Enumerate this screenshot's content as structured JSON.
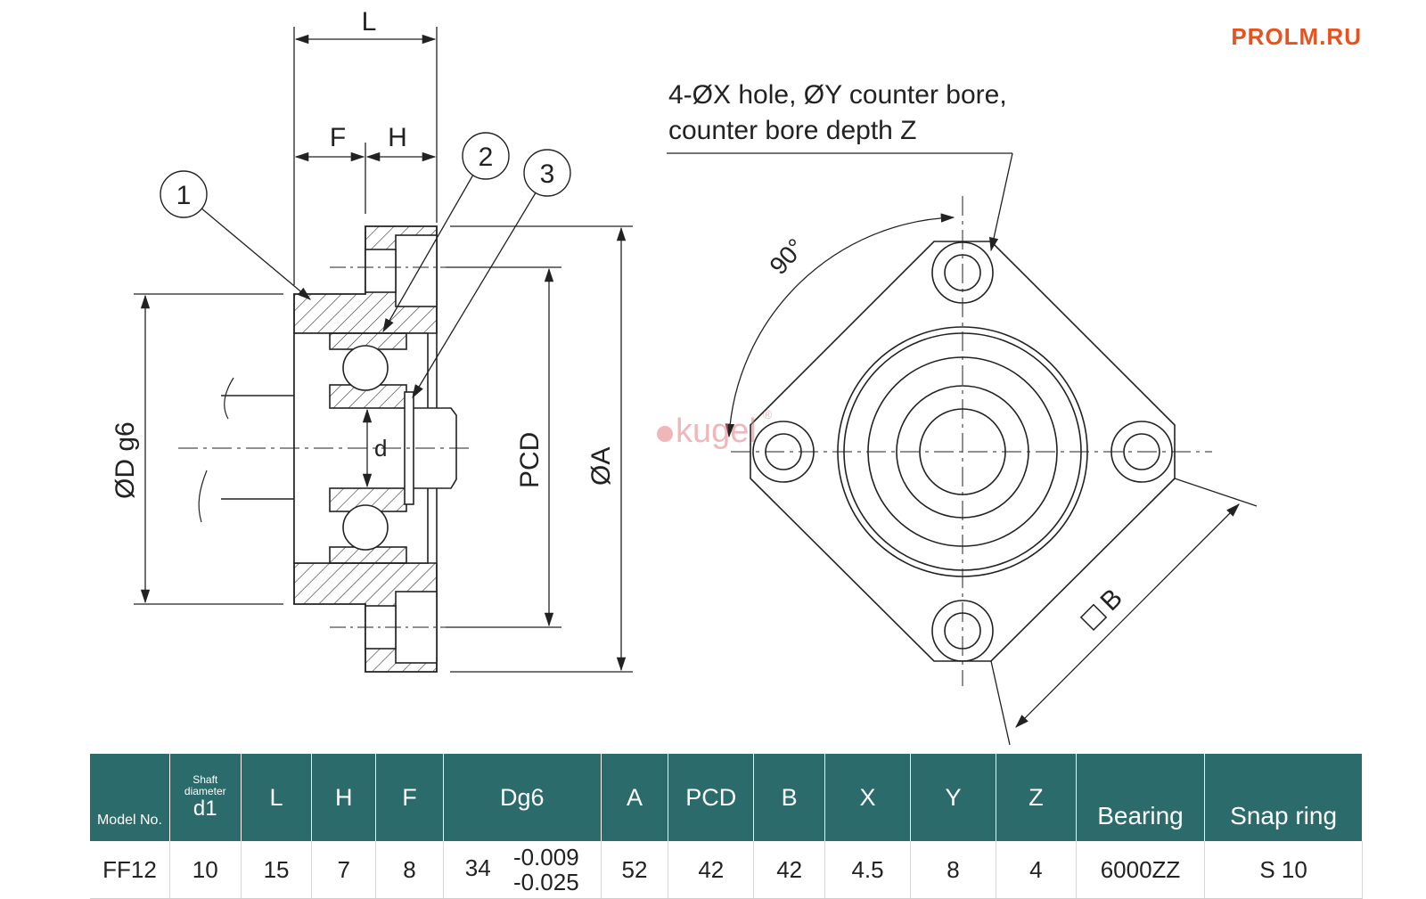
{
  "brand": "PROLM.RU",
  "watermark": "kugel",
  "watermark_mark": "®",
  "callout_note": {
    "line1": "4-ØX hole, ØY counter bore,",
    "line2": "counter bore depth Z"
  },
  "angle_label": "90°",
  "dims": {
    "L": "L",
    "F": "F",
    "H": "H",
    "d": "d",
    "D": "ØD g6",
    "PCD": "PCD",
    "A": "ØA",
    "B": "B"
  },
  "balloons": [
    "1",
    "2",
    "3"
  ],
  "colors": {
    "brand": "#e8521e",
    "header": "#2b6b6b",
    "watermark": "#e57e83"
  },
  "table": {
    "headers": {
      "model": "Model No.",
      "shaft_small": "Shaft diameter",
      "shaft_big": "d1",
      "L": "L",
      "H": "H",
      "F": "F",
      "Dg6": "Dg6",
      "A": "A",
      "PCD": "PCD",
      "B": "B",
      "X": "X",
      "Y": "Y",
      "Z": "Z",
      "bearing": "Bearing",
      "snap": "Snap ring"
    },
    "row": {
      "model": "FF12",
      "d1": "10",
      "L": "15",
      "H": "7",
      "F": "8",
      "dg6": "34",
      "tol_upper": "-0.009",
      "tol_lower": "-0.025",
      "A": "52",
      "PCD": "42",
      "B": "42",
      "X": "4.5",
      "Y": "8",
      "Z": "4",
      "bearing": "6000ZZ",
      "snap": "S 10"
    }
  }
}
